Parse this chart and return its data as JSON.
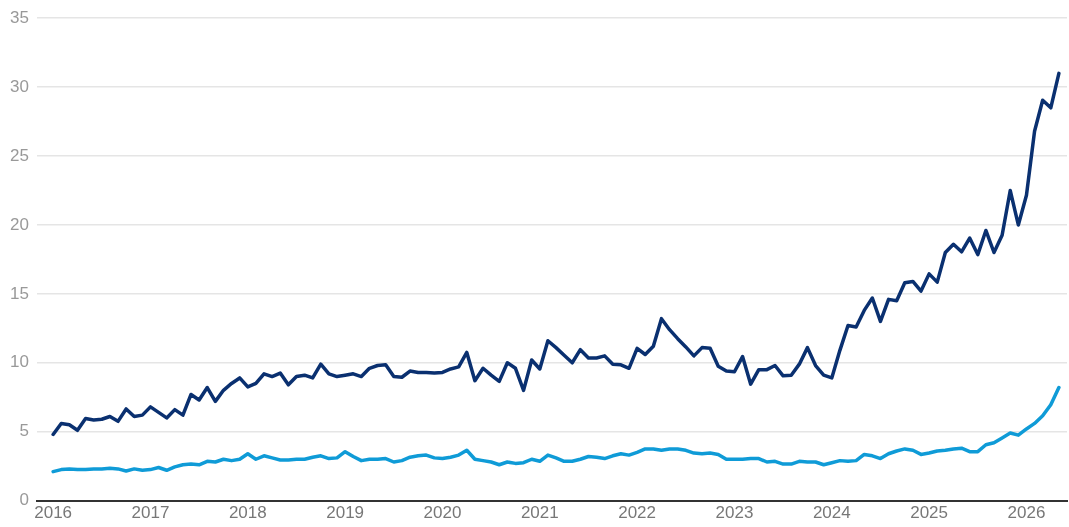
{
  "chart_data": {
    "type": "line",
    "marker": "none",
    "grid": "y",
    "x": [
      "2016-01",
      "2016-02",
      "2016-03",
      "2016-04",
      "2016-05",
      "2016-06",
      "2016-07",
      "2016-08",
      "2016-09",
      "2016-10",
      "2016-11",
      "2016-12",
      "2017-01",
      "2017-02",
      "2017-03",
      "2017-04",
      "2017-05",
      "2017-06",
      "2017-07",
      "2017-08",
      "2017-09",
      "2017-10",
      "2017-11",
      "2017-12",
      "2018-01",
      "2018-02",
      "2018-03",
      "2018-04",
      "2018-05",
      "2018-06",
      "2018-07",
      "2018-08",
      "2018-09",
      "2018-10",
      "2018-11",
      "2018-12",
      "2019-01",
      "2019-02",
      "2019-03",
      "2019-04",
      "2019-05",
      "2019-06",
      "2019-07",
      "2019-08",
      "2019-09",
      "2019-10",
      "2019-11",
      "2019-12",
      "2020-01",
      "2020-02",
      "2020-03",
      "2020-04",
      "2020-05",
      "2020-06",
      "2020-07",
      "2020-08",
      "2020-09",
      "2020-10",
      "2020-11",
      "2020-12",
      "2021-01",
      "2021-02",
      "2021-03",
      "2021-04",
      "2021-05",
      "2021-06",
      "2021-07",
      "2021-08",
      "2021-09",
      "2021-10",
      "2021-11",
      "2021-12",
      "2022-01",
      "2022-02",
      "2022-03",
      "2022-04",
      "2022-05",
      "2022-06",
      "2022-07",
      "2022-08",
      "2022-09",
      "2022-10",
      "2022-11",
      "2022-12",
      "2023-01",
      "2023-02",
      "2023-03",
      "2023-04",
      "2023-05",
      "2023-06",
      "2023-07",
      "2023-08",
      "2023-09",
      "2023-10",
      "2023-11",
      "2023-12",
      "2024-01",
      "2024-02",
      "2024-03",
      "2024-04",
      "2024-05",
      "2024-06",
      "2024-07",
      "2024-08",
      "2024-09",
      "2024-10",
      "2024-11",
      "2024-12",
      "2025-01",
      "2025-02",
      "2025-03",
      "2025-04",
      "2025-05",
      "2025-06",
      "2025-07",
      "2025-08",
      "2025-09",
      "2025-10",
      "2025-11",
      "2025-12",
      "2026-01",
      "2026-02",
      "2026-03",
      "2026-04",
      "2026-05"
    ],
    "series": [
      {
        "color": "#0a3070",
        "values": [
          4.8,
          5.6,
          5.5,
          5.1,
          5.95,
          5.85,
          5.9,
          6.1,
          5.75,
          6.65,
          6.1,
          6.2,
          6.8,
          6.4,
          6.0,
          6.6,
          6.2,
          7.7,
          7.3,
          8.2,
          7.2,
          8.0,
          8.5,
          8.9,
          8.25,
          8.5,
          9.2,
          9.0,
          9.25,
          8.4,
          9.0,
          9.1,
          8.9,
          9.9,
          9.2,
          9.0,
          9.1,
          9.2,
          9.0,
          9.6,
          9.8,
          9.85,
          9.0,
          8.95,
          9.4,
          9.3,
          9.3,
          9.25,
          9.3,
          9.55,
          9.7,
          10.75,
          8.7,
          9.6,
          9.1,
          8.65,
          10.0,
          9.6,
          8.0,
          10.2,
          9.55,
          11.6,
          11.1,
          10.55,
          10.0,
          10.95,
          10.35,
          10.35,
          10.5,
          9.9,
          9.85,
          9.6,
          11.05,
          10.6,
          11.2,
          13.2,
          12.4,
          11.75,
          11.15,
          10.5,
          11.1,
          11.05,
          9.75,
          9.4,
          9.35,
          10.45,
          8.45,
          9.5,
          9.5,
          9.8,
          9.05,
          9.1,
          9.9,
          11.1,
          9.8,
          9.1,
          8.9,
          10.9,
          12.7,
          12.6,
          13.8,
          14.7,
          13.0,
          14.6,
          14.5,
          15.8,
          15.9,
          15.2,
          16.45,
          15.85,
          18.0,
          18.6,
          18.05,
          19.05,
          17.85,
          19.6,
          18.0,
          19.25,
          22.5,
          20.0,
          22.15,
          26.8,
          29.05,
          28.5,
          31.0
        ]
      },
      {
        "color": "#0f9bd7",
        "values": [
          2.1,
          2.25,
          2.3,
          2.25,
          2.25,
          2.3,
          2.3,
          2.35,
          2.3,
          2.15,
          2.3,
          2.2,
          2.25,
          2.4,
          2.2,
          2.45,
          2.6,
          2.65,
          2.6,
          2.85,
          2.8,
          3.0,
          2.9,
          3.0,
          3.4,
          3.0,
          3.25,
          3.1,
          2.95,
          2.95,
          3.0,
          3.0,
          3.15,
          3.25,
          3.05,
          3.1,
          3.55,
          3.2,
          2.9,
          3.0,
          3.0,
          3.05,
          2.8,
          2.9,
          3.15,
          3.25,
          3.3,
          3.1,
          3.05,
          3.15,
          3.3,
          3.65,
          3.0,
          2.9,
          2.8,
          2.6,
          2.8,
          2.7,
          2.75,
          3.0,
          2.85,
          3.3,
          3.1,
          2.85,
          2.85,
          3.0,
          3.2,
          3.15,
          3.05,
          3.25,
          3.4,
          3.3,
          3.5,
          3.75,
          3.75,
          3.65,
          3.75,
          3.75,
          3.65,
          3.45,
          3.4,
          3.45,
          3.35,
          3.0,
          3.0,
          3.0,
          3.05,
          3.05,
          2.8,
          2.85,
          2.65,
          2.65,
          2.85,
          2.8,
          2.8,
          2.6,
          2.75,
          2.9,
          2.85,
          2.9,
          3.35,
          3.25,
          3.05,
          3.4,
          3.6,
          3.75,
          3.65,
          3.35,
          3.45,
          3.6,
          3.65,
          3.75,
          3.8,
          3.55,
          3.55,
          4.05,
          4.2,
          4.55,
          4.9,
          4.75,
          5.2,
          5.6,
          6.15,
          6.95,
          8.2
        ]
      }
    ],
    "xlim": [
      "2015-11",
      "2026-06"
    ],
    "xticks": [
      "2016",
      "2017",
      "2018",
      "2019",
      "2020",
      "2021",
      "2022",
      "2023",
      "2024",
      "2025",
      "2026"
    ],
    "ylim": [
      0,
      35
    ],
    "yticks": [
      0,
      5,
      10,
      15,
      20,
      25,
      30,
      35
    ]
  }
}
